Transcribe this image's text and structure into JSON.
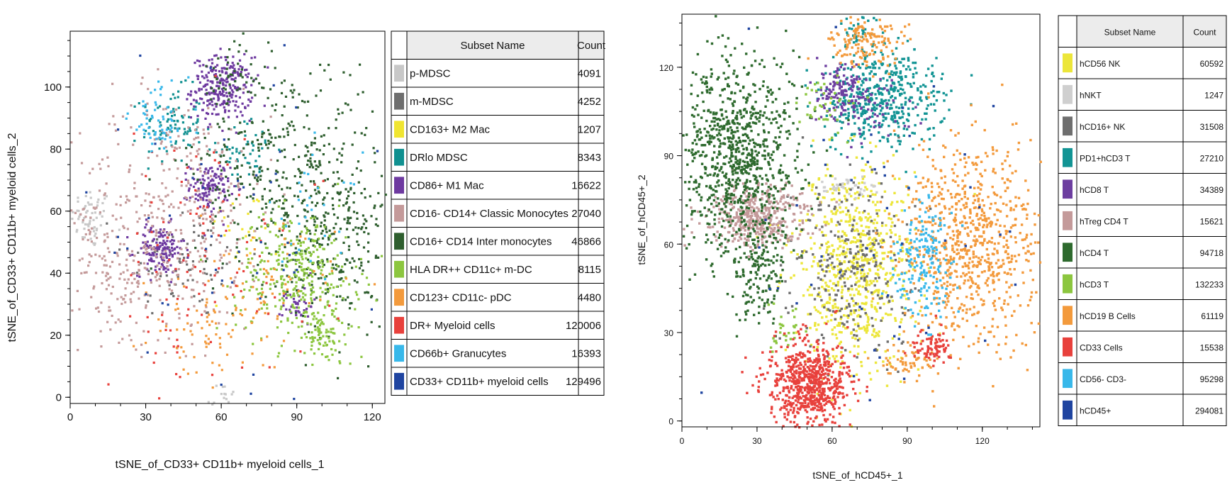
{
  "chart_data": [
    {
      "type": "scatter",
      "title": "",
      "xlabel": "tSNE_of_CD33+ CD11b+ myeloid cells_1",
      "ylabel": "tSNE_of_CD33+ CD11b+ myeloid cells_2",
      "xlim": [
        0,
        125
      ],
      "ylim": [
        -2,
        118
      ],
      "xticks": [
        0,
        30,
        60,
        90,
        120
      ],
      "yticks": [
        0,
        20,
        40,
        60,
        80,
        100
      ],
      "legend_placement": "right",
      "table_headers": {
        "name": "Subset Name",
        "count": "Count"
      },
      "series": [
        {
          "name": "p-MDSC",
          "count": "4091",
          "color": "#c8c8c8",
          "clusters": [
            [
              8,
              58,
              4,
              5,
              60
            ],
            [
              60,
              0,
              3,
              3,
              20
            ]
          ]
        },
        {
          "name": "m-MDSC",
          "count": "4252",
          "color": "#6e6e6e",
          "clusters": [
            [
              45,
              45,
              12,
              10,
              80
            ]
          ]
        },
        {
          "name": "CD163+ M2 Mac",
          "count": "1207",
          "color": "#f0e530",
          "clusters": [
            [
              70,
              55,
              8,
              6,
              25
            ]
          ]
        },
        {
          "name": "DRlo MDSC",
          "count": "8343",
          "color": "#109090",
          "clusters": [
            [
              40,
              88,
              6,
              6,
              90
            ],
            [
              70,
              80,
              6,
              5,
              50
            ]
          ]
        },
        {
          "name": "CD86+ M1 Mac",
          "count": "16622",
          "color": "#6e3aa0",
          "clusters": [
            [
              60,
              100,
              6,
              5,
              260
            ],
            [
              55,
              68,
              4,
              4,
              120
            ],
            [
              35,
              48,
              5,
              4,
              150
            ],
            [
              90,
              30,
              3,
              3,
              40
            ]
          ]
        },
        {
          "name": "CD16- CD14+ Classic Monocytes",
          "count": "27040",
          "color": "#c49a9a",
          "clusters": [
            [
              40,
              60,
              20,
              20,
              380
            ],
            [
              20,
              40,
              10,
              10,
              120
            ]
          ]
        },
        {
          "name": "CD16+  CD14 Inter monocytes",
          "count": "46866",
          "color": "#2e5e2e",
          "clusters": [
            [
              85,
              75,
              18,
              18,
              380
            ],
            [
              105,
              50,
              10,
              15,
              220
            ],
            [
              65,
              105,
              6,
              6,
              40
            ]
          ]
        },
        {
          "name": "HLA DR++ CD11c+ m-DC",
          "count": "8115",
          "color": "#8cc63f",
          "clusters": [
            [
              90,
              40,
              12,
              10,
              330
            ],
            [
              100,
              20,
              6,
              5,
              80
            ]
          ]
        },
        {
          "name": "CD123+ CD11c- pDC",
          "count": "4480",
          "color": "#f39a3c",
          "clusters": [
            [
              75,
              35,
              15,
              10,
              90
            ],
            [
              50,
              20,
              10,
              8,
              50
            ]
          ]
        },
        {
          "name": "DR+ Myeloid cells",
          "count": "120006",
          "color": "#e8413c",
          "clusters": [
            [
              50,
              40,
              25,
              25,
              110
            ]
          ]
        },
        {
          "name": "CD66b+ Granucytes",
          "count": "16393",
          "color": "#38b8ea",
          "clusters": [
            [
              35,
              90,
              6,
              6,
              60
            ],
            [
              95,
              60,
              10,
              10,
              30
            ]
          ]
        },
        {
          "name": "CD33+ CD11b+ myeloid cells",
          "count": "129496",
          "color": "#1f44a0",
          "clusters": [
            [
              60,
              50,
              28,
              28,
              60
            ]
          ]
        }
      ]
    },
    {
      "type": "scatter",
      "title": "",
      "xlabel": "tSNE_of_hCD45+_1",
      "ylabel": "tSNE_of_hCD45+_2",
      "xlim": [
        0,
        143
      ],
      "ylim": [
        -2,
        138
      ],
      "xticks": [
        0,
        30,
        60,
        90,
        120
      ],
      "yticks": [
        0,
        30,
        60,
        90,
        120
      ],
      "legend_placement": "right",
      "table_headers": {
        "name": "Subset Name",
        "count": "Count"
      },
      "series": [
        {
          "name": "hCD56 NK",
          "count": "60592",
          "color": "#ece63a",
          "clusters": [
            [
              68,
              52,
              12,
              18,
              700
            ]
          ]
        },
        {
          "name": "hNKT",
          "count": "1247",
          "color": "#cfcfcf",
          "clusters": [
            [
              63,
              80,
              6,
              2,
              40
            ]
          ]
        },
        {
          "name": "hCD16+ NK",
          "count": "31508",
          "color": "#6e6e6e",
          "clusters": [
            [
              68,
              52,
              12,
              16,
              260
            ]
          ]
        },
        {
          "name": "PD1+hCD3 T",
          "count": "27210",
          "color": "#129494",
          "clusters": [
            [
              80,
              110,
              12,
              8,
              480
            ],
            [
              70,
              132,
              4,
              3,
              30
            ]
          ]
        },
        {
          "name": "hCD8 T",
          "count": "34389",
          "color": "#6d3ea0",
          "clusters": [
            [
              62,
              112,
              5,
              5,
              120
            ],
            [
              75,
              105,
              8,
              6,
              60
            ]
          ]
        },
        {
          "name": "hTreg CD4 T",
          "count": "15621",
          "color": "#c49a9a",
          "clusters": [
            [
              30,
              70,
              10,
              5,
              420
            ]
          ]
        },
        {
          "name": "hCD4 T",
          "count": "94718",
          "color": "#2e6a2e",
          "clusters": [
            [
              22,
              90,
              12,
              17,
              900
            ],
            [
              30,
              50,
              6,
              8,
              150
            ]
          ]
        },
        {
          "name": "hCD3 T",
          "count": "132233",
          "color": "#8cc63f",
          "clusters": [
            [
              57,
              108,
              6,
              5,
              40
            ],
            [
              40,
              30,
              4,
              4,
              30
            ]
          ]
        },
        {
          "name": "hCD19 B Cells",
          "count": "61119",
          "color": "#f39a3c",
          "clusters": [
            [
              115,
              60,
              14,
              18,
              800
            ],
            [
              73,
              130,
              7,
              5,
              150
            ],
            [
              90,
              20,
              6,
              4,
              60
            ]
          ]
        },
        {
          "name": "CD33 Cells",
          "count": "15538",
          "color": "#e8413c",
          "clusters": [
            [
              50,
              13,
              8,
              7,
              700
            ],
            [
              100,
              25,
              4,
              3,
              80
            ]
          ]
        },
        {
          "name": "CD56- CD3-",
          "count": "95298",
          "color": "#38b8ea",
          "clusters": [
            [
              95,
              55,
              6,
              10,
              180
            ]
          ]
        },
        {
          "name": "hCD45+",
          "count": "294081",
          "color": "#1f44a0",
          "clusters": [
            [
              70,
              60,
              40,
              40,
              60
            ]
          ]
        }
      ]
    }
  ]
}
